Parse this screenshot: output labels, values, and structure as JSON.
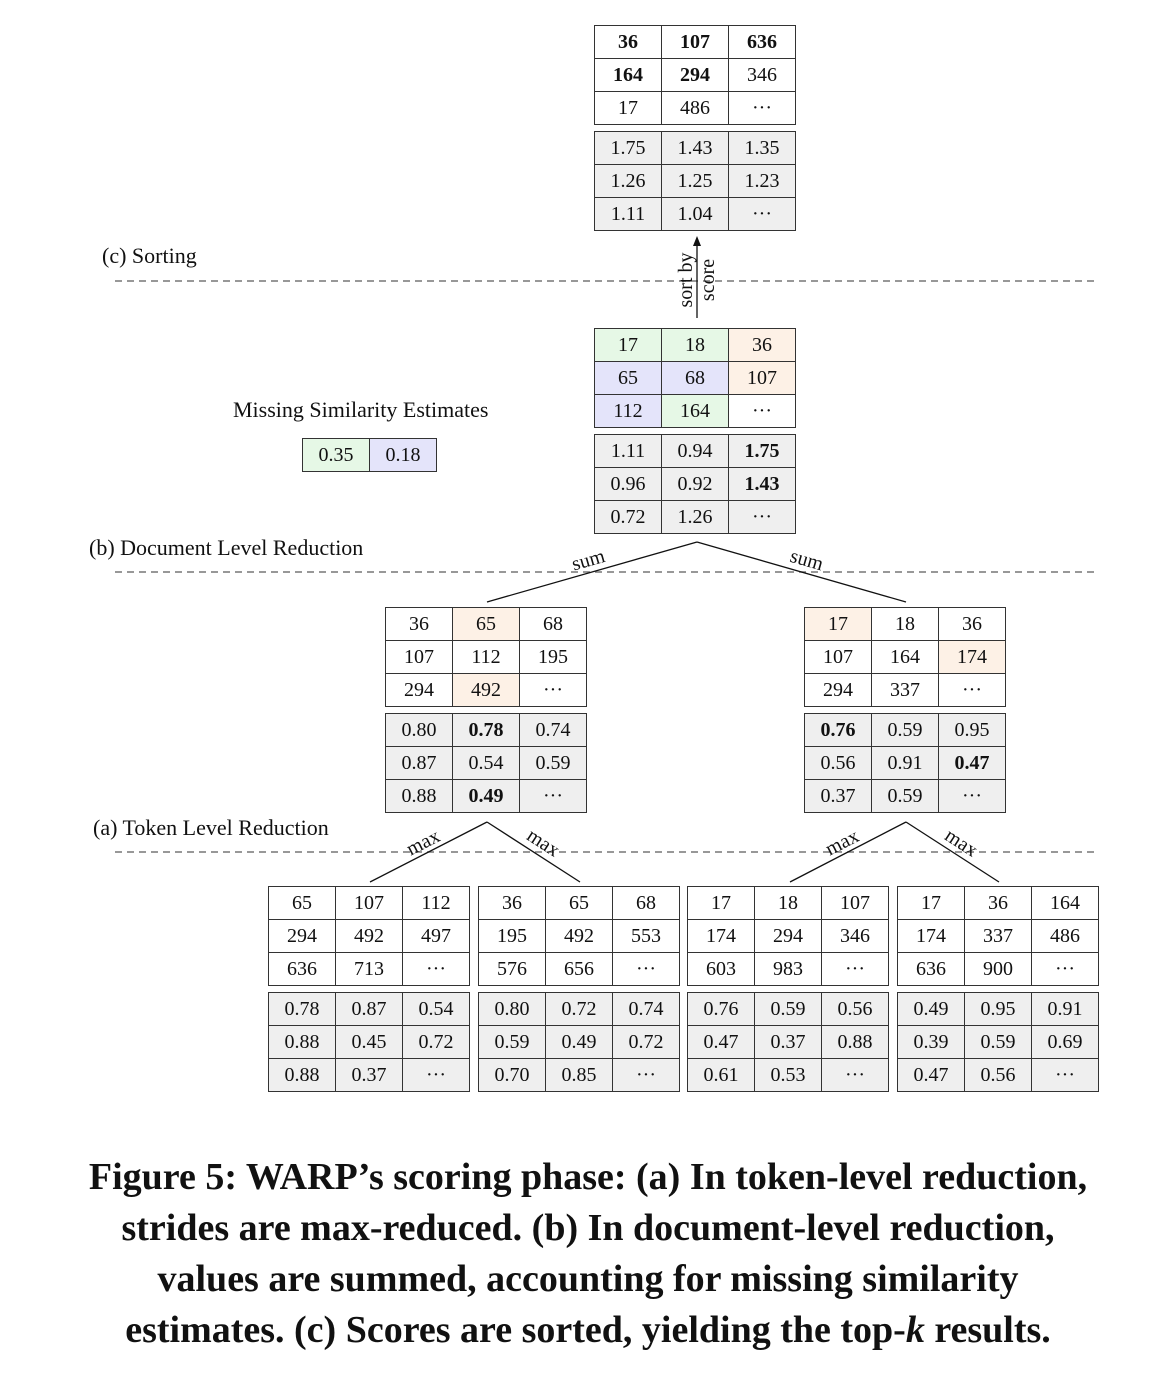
{
  "stage_labels": {
    "sorting": "(c) Sorting",
    "document_reduction": "(b) Document Level Reduction",
    "token_reduction": "(a) Token Level Reduction"
  },
  "edge_labels": {
    "sort_line1": "sort by",
    "sort_line2": "score",
    "sum": "sum",
    "max": "max"
  },
  "missing_estimates": {
    "title": "Missing Similarity Estimates",
    "values": [
      "0.35",
      "0.18"
    ]
  },
  "sorted_result": {
    "ids": [
      [
        "36",
        "107",
        "636"
      ],
      [
        "164",
        "294",
        "346"
      ],
      [
        "17",
        "486",
        "···"
      ]
    ],
    "scores": [
      [
        "1.75",
        "1.43",
        "1.35"
      ],
      [
        "1.26",
        "1.25",
        "1.23"
      ],
      [
        "1.11",
        "1.04",
        "···"
      ]
    ],
    "bold_ids": [
      [
        true,
        true,
        true
      ],
      [
        true,
        true,
        false
      ],
      [
        false,
        false,
        false
      ]
    ]
  },
  "document_level": {
    "ids": [
      [
        "17",
        "18",
        "36"
      ],
      [
        "65",
        "68",
        "107"
      ],
      [
        "112",
        "164",
        "···"
      ]
    ],
    "scores": [
      [
        "1.11",
        "0.94",
        "1.75"
      ],
      [
        "0.96",
        "0.92",
        "1.43"
      ],
      [
        "0.72",
        "1.26",
        "···"
      ]
    ],
    "id_colors": [
      [
        "green",
        "green",
        "orange"
      ],
      [
        "blue",
        "blue",
        "orange"
      ],
      [
        "blue",
        "green",
        ""
      ]
    ],
    "bold_scores": [
      [
        false,
        false,
        true
      ],
      [
        false,
        false,
        true
      ],
      [
        false,
        false,
        false
      ]
    ]
  },
  "token_level": [
    {
      "ids": [
        [
          "36",
          "65",
          "68"
        ],
        [
          "107",
          "112",
          "195"
        ],
        [
          "294",
          "492",
          "···"
        ]
      ],
      "scores": [
        [
          "0.80",
          "0.78",
          "0.74"
        ],
        [
          "0.87",
          "0.54",
          "0.59"
        ],
        [
          "0.88",
          "0.49",
          "···"
        ]
      ],
      "id_colors": [
        [
          "",
          "orange",
          ""
        ],
        [
          "",
          "",
          ""
        ],
        [
          "",
          "orange",
          ""
        ]
      ],
      "bold_scores": [
        [
          false,
          true,
          false
        ],
        [
          false,
          false,
          false
        ],
        [
          false,
          true,
          false
        ]
      ]
    },
    {
      "ids": [
        [
          "17",
          "18",
          "36"
        ],
        [
          "107",
          "164",
          "174"
        ],
        [
          "294",
          "337",
          "···"
        ]
      ],
      "scores": [
        [
          "0.76",
          "0.59",
          "0.95"
        ],
        [
          "0.56",
          "0.91",
          "0.47"
        ],
        [
          "0.37",
          "0.59",
          "···"
        ]
      ],
      "id_colors": [
        [
          "orange",
          "",
          ""
        ],
        [
          "",
          "",
          "orange"
        ],
        [
          "",
          "",
          ""
        ]
      ],
      "bold_scores": [
        [
          true,
          false,
          false
        ],
        [
          false,
          false,
          true
        ],
        [
          false,
          false,
          false
        ]
      ]
    }
  ],
  "strides": [
    {
      "ids": [
        [
          "65",
          "107",
          "112"
        ],
        [
          "294",
          "492",
          "497"
        ],
        [
          "636",
          "713",
          "···"
        ]
      ],
      "scores": [
        [
          "0.78",
          "0.87",
          "0.54"
        ],
        [
          "0.88",
          "0.45",
          "0.72"
        ],
        [
          "0.88",
          "0.37",
          "···"
        ]
      ]
    },
    {
      "ids": [
        [
          "36",
          "65",
          "68"
        ],
        [
          "195",
          "492",
          "553"
        ],
        [
          "576",
          "656",
          "···"
        ]
      ],
      "scores": [
        [
          "0.80",
          "0.72",
          "0.74"
        ],
        [
          "0.59",
          "0.49",
          "0.72"
        ],
        [
          "0.70",
          "0.85",
          "···"
        ]
      ]
    },
    {
      "ids": [
        [
          "17",
          "18",
          "107"
        ],
        [
          "174",
          "294",
          "346"
        ],
        [
          "603",
          "983",
          "···"
        ]
      ],
      "scores": [
        [
          "0.76",
          "0.59",
          "0.56"
        ],
        [
          "0.47",
          "0.37",
          "0.88"
        ],
        [
          "0.61",
          "0.53",
          "···"
        ]
      ]
    },
    {
      "ids": [
        [
          "17",
          "36",
          "164"
        ],
        [
          "174",
          "337",
          "486"
        ],
        [
          "636",
          "900",
          "···"
        ]
      ],
      "scores": [
        [
          "0.49",
          "0.95",
          "0.91"
        ],
        [
          "0.39",
          "0.59",
          "0.69"
        ],
        [
          "0.47",
          "0.56",
          "···"
        ]
      ]
    }
  ],
  "caption": {
    "line1": "Figure 5: WARP’s scoring phase: (a) In token-level reduction,",
    "line2": "strides are max-reduced. (b) In document-level reduction,",
    "line3": "values are summed, accounting for missing similarity",
    "line4_prefix": "estimates. (c) Scores are sorted, yielding the top-",
    "line4_k": "k",
    "line4_suffix": " results."
  }
}
